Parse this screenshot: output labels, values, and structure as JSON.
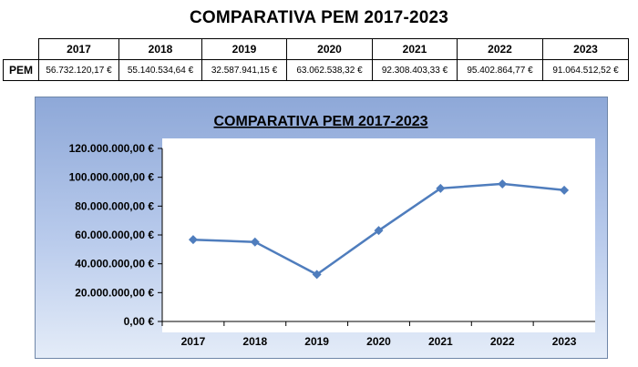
{
  "title": "COMPARATIVA PEM 2017-2023",
  "table": {
    "row_label": "PEM",
    "years": [
      "2017",
      "2018",
      "2019",
      "2020",
      "2021",
      "2022",
      "2023"
    ],
    "values": [
      "56.732.120,17 €",
      "55.140.534,64 €",
      "32.587.941,15 €",
      "63.062.538,32 €",
      "92.308.403,33 €",
      "95.402.864,77 €",
      "91.064.512,52 €"
    ]
  },
  "colors": {
    "line": "#4f7dbd",
    "plot_bg": "#ffffff",
    "frame_bg": "#9fb6e0"
  },
  "chart_data": {
    "type": "line",
    "title": "COMPARATIVA PEM 2017-2023",
    "categories": [
      "2017",
      "2018",
      "2019",
      "2020",
      "2021",
      "2022",
      "2023"
    ],
    "values": [
      56732120.17,
      55140534.64,
      32587941.15,
      63062538.32,
      92308403.33,
      95402864.77,
      91064512.52
    ],
    "ylim": [
      0,
      120000000
    ],
    "yticks": [
      "0,00 €",
      "20.000.000,00 €",
      "40.000.000,00 €",
      "60.000.000,00 €",
      "80.000.000,00 €",
      "100.000.000,00 €",
      "120.000.000,00 €"
    ],
    "grid": false,
    "legend": "none",
    "marker": "diamond"
  }
}
